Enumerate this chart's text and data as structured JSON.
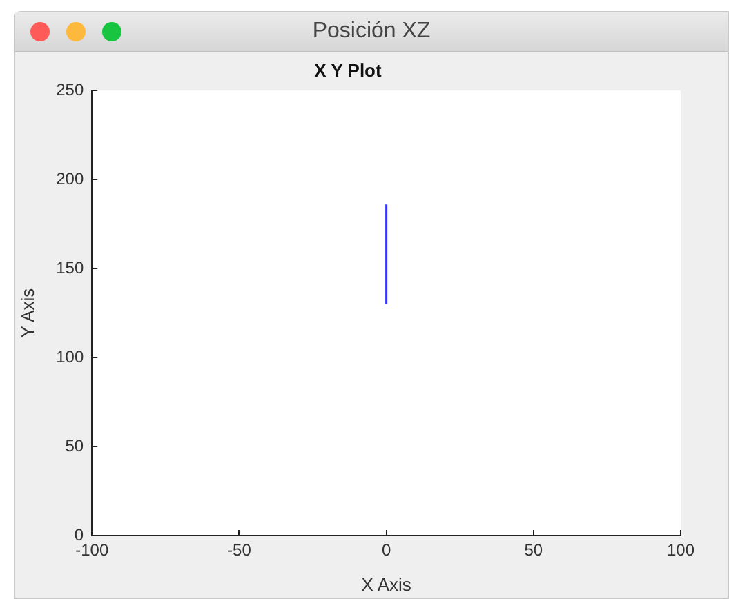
{
  "chart_data": {
    "type": "line",
    "title": "X Y Plot",
    "xlabel": "X Axis",
    "ylabel": "Y Axis",
    "annotations": [
      "Posición XZ"
    ],
    "series": [
      {
        "color": "#3333ff",
        "x": [
          0,
          0
        ],
        "values": [
          130,
          186
        ]
      }
    ],
    "xlim": [
      -100,
      100
    ],
    "xticks": [
      -100,
      -50,
      0,
      50,
      100
    ],
    "ylim": [
      0,
      250
    ],
    "yticks": [
      0,
      50,
      100,
      150,
      200,
      250
    ],
    "grid": false,
    "legend": false,
    "marker": "none",
    "line_style": "solid"
  }
}
